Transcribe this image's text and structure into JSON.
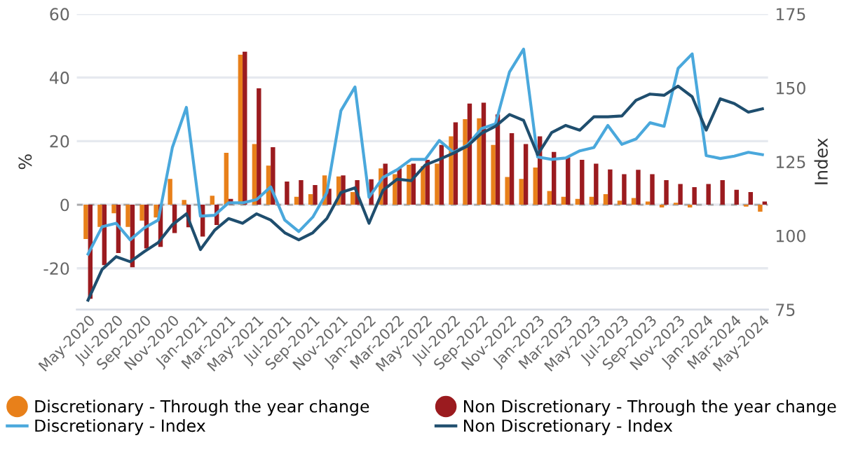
{
  "chart_data": {
    "type": "bar",
    "categories": [
      "May-2020",
      null,
      "Jul-2020",
      null,
      "Sep-2020",
      null,
      "Nov-2020",
      null,
      "Jan-2021",
      null,
      "Mar-2021",
      null,
      "May-2021",
      null,
      "Jul-2021",
      null,
      "Sep-2021",
      null,
      "Nov-2021",
      null,
      "Jan-2022",
      null,
      "Mar-2022",
      null,
      "May-2022",
      null,
      "Jul-2022",
      null,
      "Sep-2022",
      null,
      "Nov-2022",
      null,
      "Jan-2023",
      null,
      "Mar-2023",
      null,
      "May-2023",
      null,
      "Jul-2023",
      null,
      "Sep-2023",
      null,
      "Nov-2023",
      null,
      "Jan-2024",
      null,
      "Mar-2024",
      null,
      "May-2024"
    ],
    "series": [
      {
        "name": "Discretionary - Through the year change",
        "color": "#e8801a",
        "values": [
          -10.8,
          -7,
          -2.7,
          -7,
          -5,
          -4,
          8.1,
          1.5,
          0,
          2.8,
          16.3,
          47.2,
          19.1,
          12.3,
          0,
          2.5,
          3.3,
          9.2,
          8.9,
          4,
          0,
          11.4,
          9.6,
          12.6,
          12.1,
          12.9,
          21.5,
          26.9,
          27.2,
          18.8,
          8.7,
          8.1,
          11.7,
          4.3,
          2.5,
          1.8,
          2.5,
          3.3,
          1.3,
          2.1,
          1,
          -0.9,
          0.6,
          -0.9,
          0,
          0,
          0,
          -0.6,
          -2.2
        ]
      },
      {
        "name": "Non Discretionary - Through the year change",
        "color": "#9b1b1f",
        "values": [
          -29.6,
          -19,
          -15.2,
          -19.7,
          -13.8,
          -13.3,
          -8.9,
          -7.1,
          -10,
          -6.4,
          1.8,
          48.1,
          36.6,
          18.1,
          7.3,
          7.7,
          6.2,
          5,
          9.2,
          7.7,
          8,
          12.9,
          11.4,
          12.9,
          14.1,
          18.8,
          25.9,
          31.8,
          32.1,
          28.4,
          22.5,
          19.1,
          21.5,
          16.6,
          14.9,
          14.1,
          12.9,
          11.1,
          9.6,
          11,
          9.6,
          7.7,
          6.5,
          5.5,
          6.5,
          7.7,
          4.7,
          4,
          1
        ]
      },
      {
        "name": "Discretionary - Index",
        "type": "line",
        "axis": "y2",
        "color": "#4aa8dc",
        "values": [
          93.8,
          103.0,
          104.2,
          98.6,
          102.6,
          105.3,
          129.8,
          143.4,
          106.6,
          106.9,
          111.1,
          111.1,
          112.2,
          116.5,
          105.3,
          101.4,
          106.3,
          114.6,
          142.3,
          150.3,
          113,
          119.7,
          122.3,
          125.8,
          125.8,
          132.2,
          128.2,
          130.6,
          136.2,
          137.8,
          155.4,
          163.1,
          126.6,
          125.8,
          126.3,
          128.7,
          129.8,
          137.3,
          130.9,
          132.7,
          138.2,
          137,
          156.6,
          161.5,
          127.1,
          126.1,
          126.9,
          128.2,
          127.4
        ]
      },
      {
        "name": "Non Discretionary - Index",
        "type": "line",
        "axis": "y2",
        "color": "#1f4e6e",
        "values": [
          78.2,
          88.6,
          92.9,
          91.2,
          94.6,
          97.7,
          103.7,
          107.4,
          95.3,
          101.8,
          105.8,
          104.2,
          107.4,
          105.3,
          101.0,
          98.6,
          101.0,
          105.8,
          114.6,
          116.2,
          104.2,
          115.4,
          119.1,
          118.6,
          123.9,
          125.8,
          127.9,
          130.3,
          134.6,
          137,
          141,
          139,
          127.4,
          134.9,
          137.3,
          135.7,
          140.2,
          140.2,
          140.5,
          145.8,
          147.9,
          147.5,
          150.6,
          147,
          135.7,
          146.3,
          144.7,
          141.8,
          142.9
        ]
      }
    ],
    "ylabel": "%",
    "y2label": "Index",
    "ylim": [
      -33,
      60
    ],
    "yticks": [
      -20,
      0,
      20,
      40,
      60
    ],
    "y2lim": [
      75,
      175
    ],
    "y2ticks": [
      75,
      100,
      125,
      150,
      175
    ],
    "ref_lines": [
      {
        "axis": "y",
        "value": 0,
        "color": "#aaaaaa",
        "line_style": "dashed"
      }
    ],
    "grid": "y",
    "legend": "bottom",
    "marker": "none",
    "line_style": "solid"
  }
}
